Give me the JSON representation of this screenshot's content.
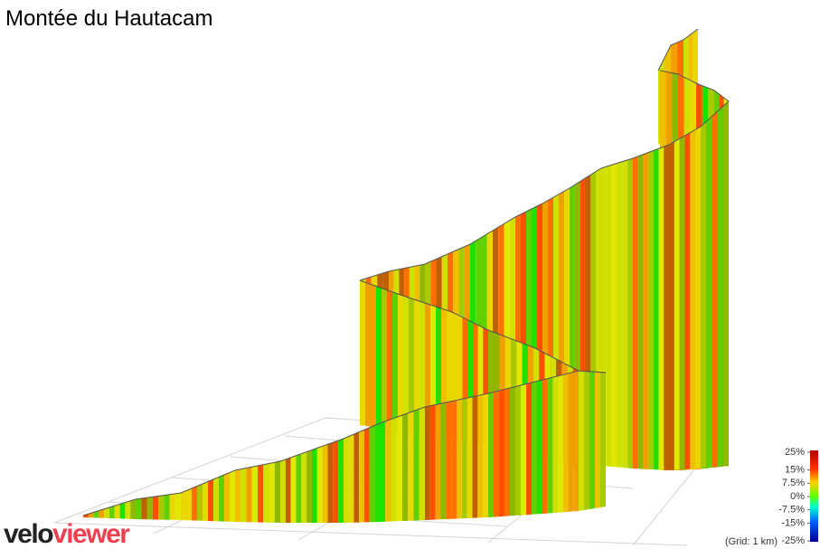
{
  "title": "Montée du Hautacam",
  "color_scale": {
    "ticks": [
      {
        "value": 25,
        "label": "25%"
      },
      {
        "value": 15,
        "label": "15%"
      },
      {
        "value": 7.5,
        "label": "7.5%"
      },
      {
        "value": 0,
        "label": "0%"
      },
      {
        "value": -7.5,
        "label": "-7.5%"
      },
      {
        "value": -15,
        "label": "-15%"
      },
      {
        "value": -25,
        "label": "-25%"
      }
    ]
  },
  "grid_note": "(Grid: 1 km)",
  "logo": {
    "part1": "velo",
    "part2": "viewer"
  }
}
